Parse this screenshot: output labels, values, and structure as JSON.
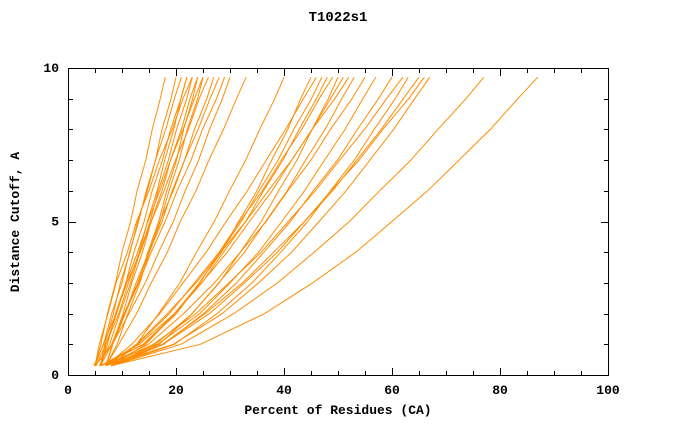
{
  "chart_data": {
    "type": "line",
    "title": "T1022s1",
    "xlabel": "Percent of Residues (CA)",
    "ylabel": "Distance Cutoff, A",
    "xlim": [
      0,
      100
    ],
    "ylim": [
      0,
      10
    ],
    "x_ticks": [
      0,
      20,
      40,
      60,
      80,
      100
    ],
    "y_ticks": [
      0,
      5,
      10
    ],
    "x_minor_step": 5,
    "y_minor_step": 1,
    "grid": false,
    "legend": "none",
    "line_color": "#ff8c00",
    "background": "#ffffff",
    "y_samples": [
      0.3,
      1,
      2,
      3,
      4,
      5,
      6,
      7,
      8,
      9,
      9.7
    ],
    "series": [
      [
        5.0,
        6.1,
        7.3,
        8.8,
        10.0,
        11.6,
        12.8,
        14.4,
        15.6,
        17.1,
        18.0
      ],
      [
        4.8,
        6.6,
        8.1,
        10.0,
        11.4,
        13.1,
        14.5,
        16.2,
        17.4,
        19.1,
        20.0
      ],
      [
        6.0,
        6.8,
        8.4,
        9.7,
        11.5,
        12.9,
        14.7,
        16.2,
        18.1,
        19.7,
        21.0
      ],
      [
        5.2,
        7.0,
        9.4,
        11.2,
        13.2,
        14.7,
        16.5,
        17.9,
        19.6,
        20.9,
        22.0
      ],
      [
        6.0,
        7.3,
        8.8,
        10.7,
        12.2,
        14.1,
        15.6,
        17.5,
        19.0,
        20.9,
        22.0
      ],
      [
        5.0,
        5.8,
        7.4,
        8.9,
        11.0,
        12.7,
        15.0,
        16.9,
        19.3,
        21.3,
        23.0
      ],
      [
        5.8,
        7.7,
        9.6,
        11.6,
        13.3,
        15.2,
        16.7,
        18.6,
        20.1,
        22.0,
        23.0
      ],
      [
        7.0,
        8.2,
        10.2,
        11.8,
        13.8,
        15.4,
        17.4,
        19.0,
        21.0,
        22.6,
        24.0
      ],
      [
        5.0,
        8.2,
        10.6,
        13.0,
        14.8,
        16.8,
        18.3,
        20.1,
        21.4,
        23.1,
        24.0
      ],
      [
        6.2,
        7.0,
        9.0,
        10.7,
        12.9,
        14.8,
        17.0,
        19.0,
        21.3,
        23.4,
        25.0
      ],
      [
        7.0,
        9.1,
        11.1,
        13.3,
        15.1,
        17.1,
        18.7,
        20.6,
        22.1,
        24.0,
        25.0
      ],
      [
        5.0,
        6.5,
        8.9,
        10.9,
        13.4,
        15.4,
        17.8,
        19.9,
        22.3,
        24.3,
        26.0
      ],
      [
        6.0,
        8.1,
        10.4,
        12.9,
        15.0,
        17.4,
        19.3,
        21.6,
        23.4,
        25.7,
        27.0
      ],
      [
        7.0,
        8.3,
        10.6,
        12.6,
        15.0,
        17.0,
        19.5,
        21.6,
        24.1,
        26.3,
        28.0
      ],
      [
        6.0,
        8.1,
        10.5,
        13.1,
        15.4,
        18.0,
        20.2,
        22.8,
        24.9,
        27.5,
        29.0
      ],
      [
        5.0,
        8.2,
        11.3,
        14.3,
        16.8,
        19.5,
        21.7,
        24.2,
        26.2,
        28.6,
        30.0
      ],
      [
        7.0,
        9.4,
        12.7,
        15.4,
        18.4,
        20.8,
        23.7,
        26.1,
        28.8,
        31.2,
        33.0
      ],
      [
        8.0,
        12.7,
        16.8,
        20.7,
        23.8,
        27.1,
        29.9,
        32.9,
        35.5,
        38.3,
        40.0
      ],
      [
        6.0,
        14.1,
        20.1,
        24.3,
        28.4,
        31.6,
        35.0,
        37.7,
        40.7,
        43.1,
        45.0
      ],
      [
        7.0,
        11.8,
        17.0,
        21.3,
        25.6,
        29.3,
        33.2,
        36.7,
        40.3,
        43.6,
        46.0
      ],
      [
        8.0,
        14.4,
        19.7,
        24.4,
        28.2,
        32.1,
        35.4,
        38.9,
        41.8,
        45.1,
        47.0
      ],
      [
        6.0,
        13.9,
        19.8,
        24.8,
        28.8,
        32.9,
        36.2,
        39.8,
        42.8,
        46.0,
        48.0
      ],
      [
        7.0,
        12.9,
        18.8,
        23.4,
        28.0,
        31.8,
        36.0,
        39.5,
        43.3,
        46.5,
        49.0
      ],
      [
        8.0,
        16.9,
        23.0,
        28.0,
        31.9,
        35.8,
        39.0,
        42.4,
        45.2,
        48.2,
        50.0
      ],
      [
        6.0,
        13.2,
        19.7,
        24.7,
        29.5,
        33.6,
        37.8,
        41.4,
        45.2,
        48.6,
        51.0
      ],
      [
        7.0,
        12.7,
        18.4,
        23.7,
        28.3,
        32.9,
        37.1,
        41.4,
        45.2,
        49.4,
        52.0
      ],
      [
        8.0,
        16.2,
        23.0,
        27.9,
        32.7,
        36.6,
        40.6,
        44.0,
        47.6,
        50.7,
        53.0
      ],
      [
        7.0,
        14.9,
        21.4,
        27.1,
        31.9,
        36.7,
        40.7,
        45.0,
        48.6,
        52.6,
        55.0
      ],
      [
        6.0,
        16.6,
        24.4,
        30.0,
        35.3,
        39.6,
        43.8,
        47.5,
        51.3,
        54.6,
        57.0
      ],
      [
        8.0,
        17.7,
        25.1,
        31.2,
        36.3,
        41.2,
        45.4,
        49.9,
        53.6,
        57.5,
        60.0
      ],
      [
        7.0,
        15.8,
        23.7,
        29.8,
        35.8,
        40.8,
        45.8,
        50.3,
        54.9,
        59.0,
        62.0
      ],
      [
        8.0,
        19.7,
        27.6,
        34.1,
        39.4,
        44.4,
        48.6,
        53.0,
        56.7,
        60.6,
        63.0
      ],
      [
        7.0,
        17.6,
        26.2,
        32.7,
        38.8,
        43.8,
        49.0,
        53.5,
        58.0,
        62.1,
        65.0
      ],
      [
        8.0,
        17.5,
        25.4,
        32.3,
        38.1,
        43.8,
        48.7,
        53.9,
        58.3,
        63.1,
        66.0
      ],
      [
        7.0,
        19.5,
        28.6,
        35.3,
        41.4,
        46.5,
        51.5,
        55.9,
        60.3,
        64.2,
        67.0
      ],
      [
        8.0,
        20.9,
        30.7,
        38.8,
        45.6,
        52.1,
        57.7,
        63.5,
        68.5,
        73.7,
        77.0
      ],
      [
        8.0,
        24.5,
        36.4,
        45.3,
        53.3,
        60.0,
        66.6,
        72.4,
        78.2,
        83.3,
        87.0
      ]
    ]
  }
}
